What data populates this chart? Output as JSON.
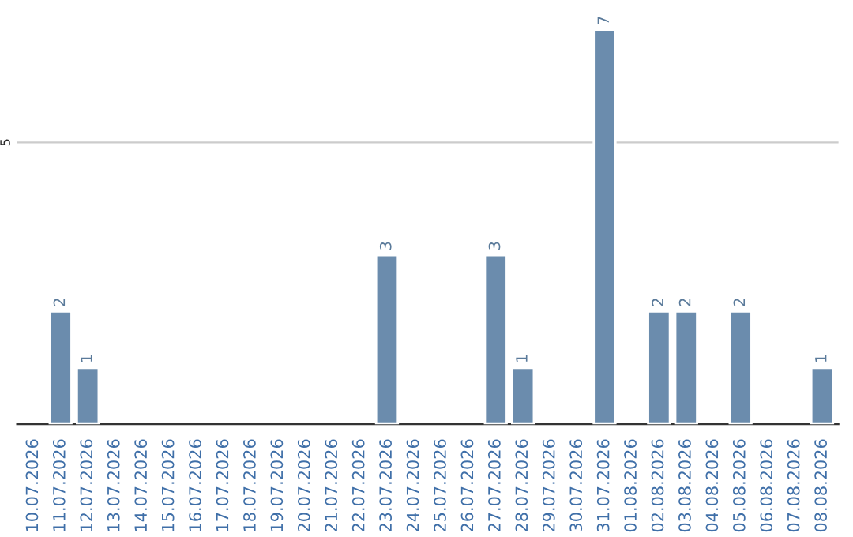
{
  "chart_data": {
    "type": "bar",
    "categories": [
      "10.07.2026",
      "11.07.2026",
      "12.07.2026",
      "13.07.2026",
      "14.07.2026",
      "15.07.2026",
      "16.07.2026",
      "17.07.2026",
      "18.07.2026",
      "19.07.2026",
      "20.07.2026",
      "21.07.2026",
      "22.07.2026",
      "23.07.2026",
      "24.07.2026",
      "25.07.2026",
      "26.07.2026",
      "27.07.2026",
      "28.07.2026",
      "29.07.2026",
      "30.07.2026",
      "31.07.2026",
      "01.08.2026",
      "02.08.2026",
      "03.08.2026",
      "04.08.2026",
      "05.08.2026",
      "06.08.2026",
      "07.08.2026",
      "08.08.2026"
    ],
    "values": [
      null,
      2,
      1,
      null,
      null,
      null,
      null,
      null,
      null,
      null,
      null,
      null,
      null,
      3,
      null,
      null,
      null,
      3,
      1,
      null,
      null,
      7,
      null,
      2,
      2,
      null,
      2,
      null,
      null,
      1
    ],
    "color": "#6b8cad",
    "ylim": [
      0,
      7.05
    ],
    "yticks": [
      5
    ],
    "grid": "y",
    "data_labels": true
  }
}
